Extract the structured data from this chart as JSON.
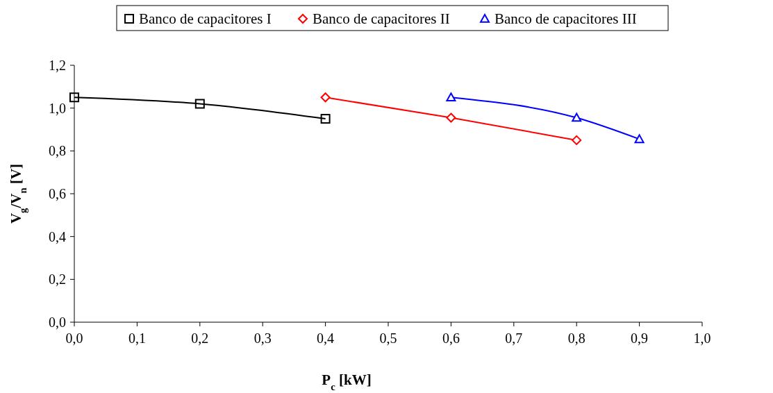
{
  "chart_data": {
    "type": "line",
    "xlabel": "P$_{c}$ [kW]",
    "ylabel": "V$_{g}$/V$_{n}$ [V]",
    "xlim": [
      0,
      1
    ],
    "ylim": [
      0,
      1.2
    ],
    "xticks": [
      {
        "value": 0,
        "label": "0,0"
      },
      {
        "value": 0.1,
        "label": "0,1"
      },
      {
        "value": 0.2,
        "label": "0,2"
      },
      {
        "value": 0.3,
        "label": "0,3"
      },
      {
        "value": 0.4,
        "label": "0,4"
      },
      {
        "value": 0.5,
        "label": "0,5"
      },
      {
        "value": 0.6,
        "label": "0,6"
      },
      {
        "value": 0.7,
        "label": "0,7"
      },
      {
        "value": 0.8,
        "label": "0,8"
      },
      {
        "value": 0.9,
        "label": "0,9"
      },
      {
        "value": 1,
        "label": "1,0"
      }
    ],
    "yticks": [
      {
        "value": 0,
        "label": "0,0"
      },
      {
        "value": 0.2,
        "label": "0,2"
      },
      {
        "value": 0.4,
        "label": "0,4"
      },
      {
        "value": 0.6,
        "label": "0,6"
      },
      {
        "value": 0.8,
        "label": "0,8"
      },
      {
        "value": 1,
        "label": "1,0"
      },
      {
        "value": 1.2,
        "label": "1,2"
      }
    ],
    "grid": false,
    "legend": "top",
    "line_style": "solid",
    "series": [
      {
        "name": "Banco de capacitores I",
        "color": "#000000",
        "marker": "square",
        "x": [
          0,
          0.2,
          0.4
        ],
        "values": [
          1.05,
          1.02,
          0.95
        ]
      },
      {
        "name": "Banco de capacitores II",
        "color": "#ff0000",
        "marker": "diamond",
        "x": [
          0.4,
          0.6,
          0.8
        ],
        "values": [
          1.05,
          0.955,
          0.85
        ]
      },
      {
        "name": "Banco de capacitores III",
        "color": "#0000ff",
        "marker": "triangle",
        "x": [
          0.6,
          0.8,
          0.9
        ],
        "values": [
          1.05,
          0.955,
          0.855
        ]
      }
    ]
  }
}
